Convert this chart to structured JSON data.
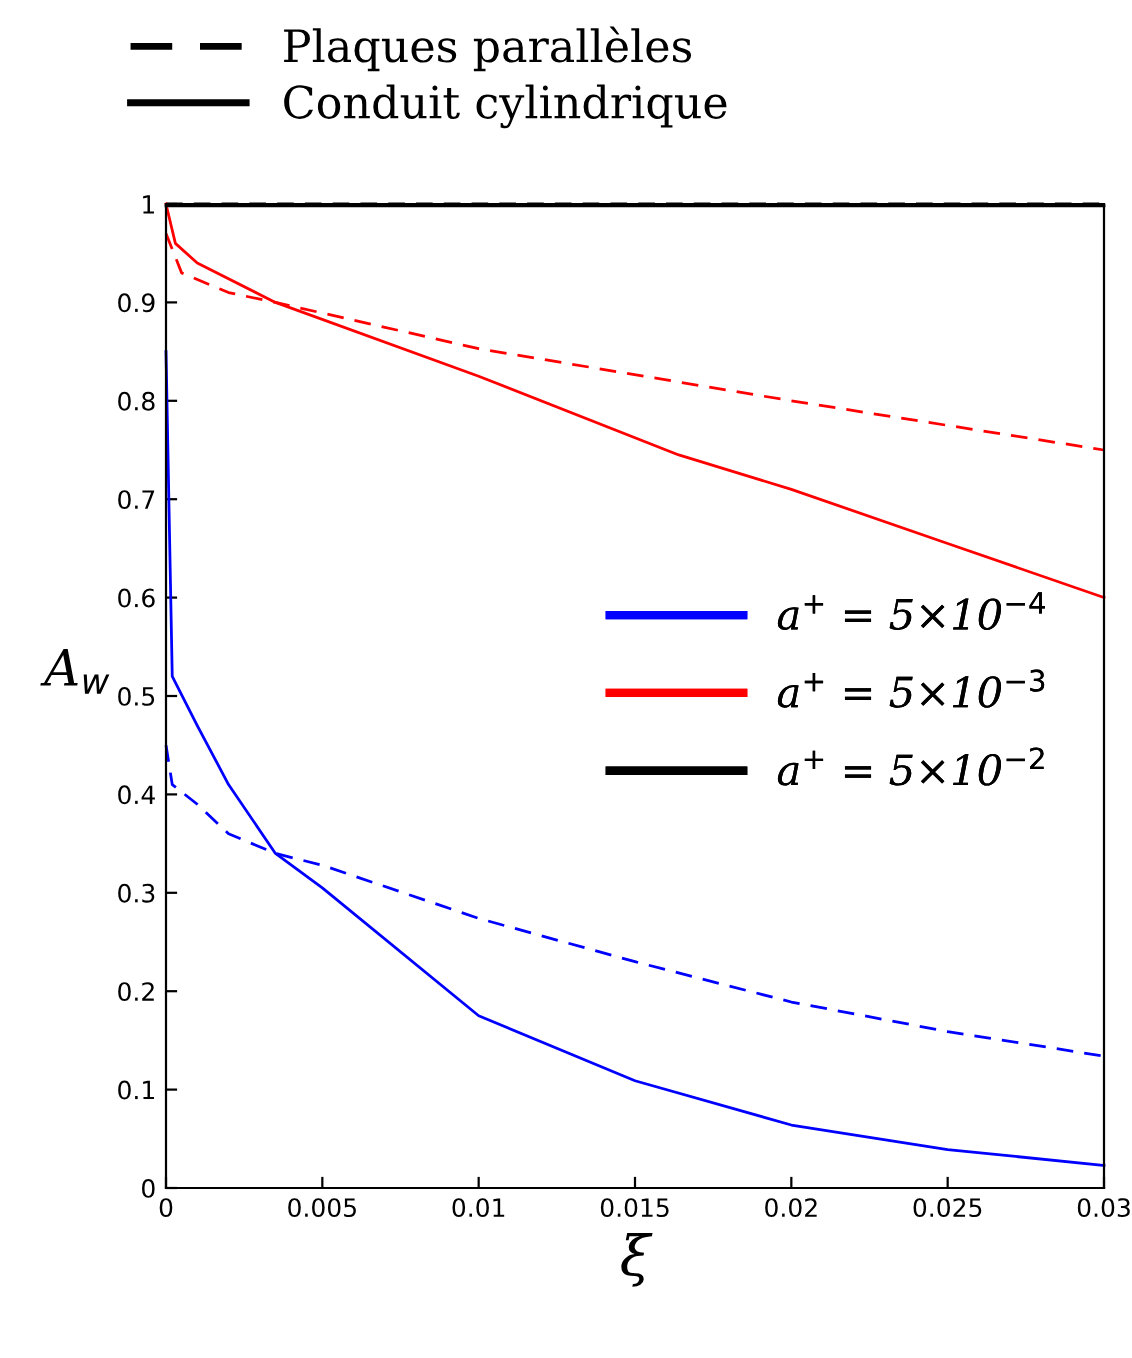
{
  "chart_data": {
    "type": "line",
    "xlabel": "ξ",
    "ylabel": "A$_{w}$",
    "xlim": [
      0,
      0.03
    ],
    "xticks": [
      0,
      0.005,
      0.01,
      0.015,
      0.02,
      0.025,
      0.03
    ],
    "ylim": [
      0,
      1
    ],
    "yticks": [
      0,
      0.1,
      0.2,
      0.3,
      0.4,
      0.5,
      0.6,
      0.7,
      0.8,
      0.9,
      1
    ],
    "grid": false,
    "legend": "center right",
    "marker": "none",
    "annotations": [
      "Plaques parallèles",
      "Conduit cylindrique"
    ],
    "series": [
      {
        "color": "#0000ff",
        "line_style": "dashed",
        "x": [
          0,
          0.0002,
          0.001,
          0.002,
          0.0035,
          0.005,
          0.01,
          0.015,
          0.02,
          0.025,
          0.03
        ],
        "values": [
          0.45,
          0.41,
          0.39,
          0.36,
          0.34,
          0.328,
          0.274,
          0.23,
          0.189,
          0.159,
          0.134
        ]
      },
      {
        "color": "#ff0000",
        "line_style": "dashed",
        "x": [
          0,
          0.0005,
          0.002,
          0.0035,
          0.01,
          0.02,
          0.03
        ],
        "values": [
          0.97,
          0.93,
          0.91,
          0.9,
          0.853,
          0.8,
          0.75
        ]
      },
      {
        "color": "#000000",
        "line_style": "dashed",
        "x": [
          0,
          0.03
        ],
        "values": [
          1.0,
          1.0
        ]
      },
      {
        "name": "a$^{+}$ = 5×10$^{−4}$",
        "color": "#0000ff",
        "line_style": "solid",
        "x": [
          0,
          0.0002,
          0.001,
          0.002,
          0.0035,
          0.005,
          0.01,
          0.015,
          0.02,
          0.025,
          0.03
        ],
        "values": [
          0.85,
          0.52,
          0.47,
          0.41,
          0.34,
          0.305,
          0.175,
          0.109,
          0.064,
          0.039,
          0.023
        ]
      },
      {
        "name": "a$^{+}$ = 5×10$^{−3}$",
        "color": "#ff0000",
        "line_style": "solid",
        "x": [
          0,
          0.0003,
          0.001,
          0.0035,
          0.01,
          0.0164,
          0.02,
          0.025,
          0.03
        ],
        "values": [
          1.0,
          0.96,
          0.94,
          0.9,
          0.825,
          0.745,
          0.71,
          0.655,
          0.6
        ]
      },
      {
        "name": "a$^{+}$ = 5×10$^{−2}$",
        "color": "#000000",
        "line_style": "solid",
        "x": [
          0,
          0.03
        ],
        "values": [
          0.998,
          0.998
        ]
      }
    ]
  }
}
